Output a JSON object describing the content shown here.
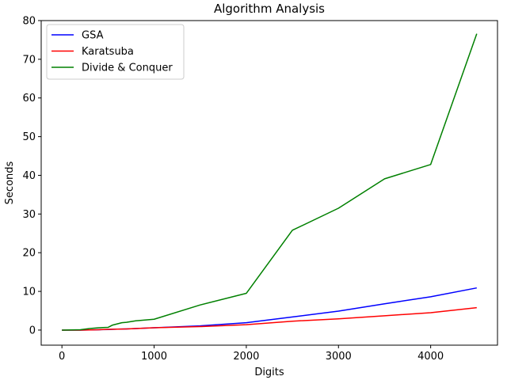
{
  "chart_data": {
    "type": "line",
    "title": "Algorithm Analysis",
    "xlabel": "Digits",
    "ylabel": "Seconds",
    "xlim": [
      -225,
      4725
    ],
    "ylim": [
      -3.9,
      80
    ],
    "x_ticks": [
      0,
      1000,
      2000,
      3000,
      4000
    ],
    "y_ticks": [
      0,
      10,
      20,
      30,
      40,
      50,
      60,
      70,
      80
    ],
    "grid": false,
    "legend_position": "top-left",
    "series": [
      {
        "name": "GSA",
        "color": "#0000ff",
        "points": [
          [
            0,
            0
          ],
          [
            100,
            0
          ],
          [
            200,
            0
          ],
          [
            300,
            0.05
          ],
          [
            400,
            0.1
          ],
          [
            500,
            0.15
          ],
          [
            600,
            0.25
          ],
          [
            700,
            0.3
          ],
          [
            800,
            0.4
          ],
          [
            900,
            0.5
          ],
          [
            1000,
            0.6
          ],
          [
            1500,
            1.1
          ],
          [
            2000,
            1.9
          ],
          [
            2500,
            3.4
          ],
          [
            3000,
            4.9
          ],
          [
            3500,
            6.8
          ],
          [
            4000,
            8.6
          ],
          [
            4500,
            10.9
          ]
        ]
      },
      {
        "name": "Karatsuba",
        "color": "#ff0000",
        "points": [
          [
            0,
            0
          ],
          [
            100,
            0
          ],
          [
            200,
            0
          ],
          [
            300,
            0.05
          ],
          [
            400,
            0.1
          ],
          [
            500,
            0.2
          ],
          [
            600,
            0.25
          ],
          [
            700,
            0.3
          ],
          [
            800,
            0.4
          ],
          [
            900,
            0.5
          ],
          [
            1000,
            0.6
          ],
          [
            1500,
            0.9
          ],
          [
            2000,
            1.4
          ],
          [
            2500,
            2.3
          ],
          [
            3000,
            2.9
          ],
          [
            3500,
            3.7
          ],
          [
            4000,
            4.5
          ],
          [
            4500,
            5.8
          ]
        ]
      },
      {
        "name": "Divide & Conquer",
        "color": "#008000",
        "points": [
          [
            0,
            0
          ],
          [
            100,
            0.05
          ],
          [
            200,
            0.1
          ],
          [
            300,
            0.4
          ],
          [
            400,
            0.6
          ],
          [
            500,
            0.7
          ],
          [
            550,
            1.3
          ],
          [
            600,
            1.6
          ],
          [
            650,
            1.9
          ],
          [
            700,
            2.0
          ],
          [
            800,
            2.4
          ],
          [
            900,
            2.6
          ],
          [
            1000,
            2.8
          ],
          [
            1500,
            6.5
          ],
          [
            2000,
            9.5
          ],
          [
            2500,
            25.8
          ],
          [
            3000,
            31.5
          ],
          [
            3500,
            39.1
          ],
          [
            4000,
            42.8
          ],
          [
            4500,
            76.6
          ]
        ]
      }
    ]
  }
}
